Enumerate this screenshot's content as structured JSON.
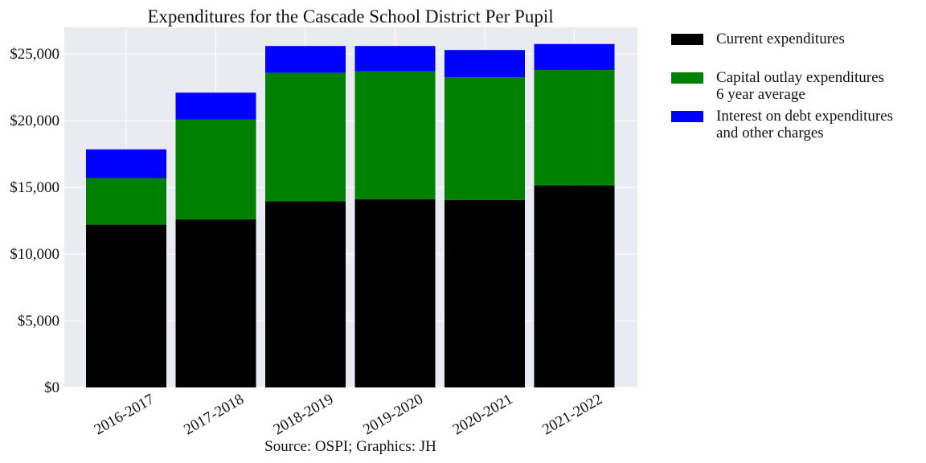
{
  "chart_data": {
    "type": "bar",
    "stacked": true,
    "title": "Expenditures for the Cascade School District Per Pupil",
    "xlabel": "Source: OSPI; Graphics: JH",
    "ylabel": "",
    "categories": [
      "2016-2017",
      "2017-2018",
      "2018-2019",
      "2019-2020",
      "2020-2021",
      "2021-2022"
    ],
    "ylim": [
      0,
      27000
    ],
    "yticks": [
      0,
      5000,
      10000,
      15000,
      20000,
      25000
    ],
    "ytick_labels": [
      "$0",
      "$5,000",
      "$10,000",
      "$15,000",
      "$20,000",
      "$25,000"
    ],
    "grid": true,
    "legend_position": "outside-right",
    "series": [
      {
        "name": "Current expenditures",
        "color": "#000000",
        "values": [
          12200,
          12600,
          13950,
          14100,
          14050,
          15150
        ]
      },
      {
        "name": "Capital outlay expenditures\n6 year average",
        "color": "#008000",
        "values": [
          3500,
          7500,
          9650,
          9600,
          9200,
          8650
        ]
      },
      {
        "name": "Interest on debt expenditures\nand other charges",
        "color": "#0000ff",
        "values": [
          2150,
          2000,
          2000,
          1900,
          2050,
          1950
        ]
      }
    ]
  }
}
